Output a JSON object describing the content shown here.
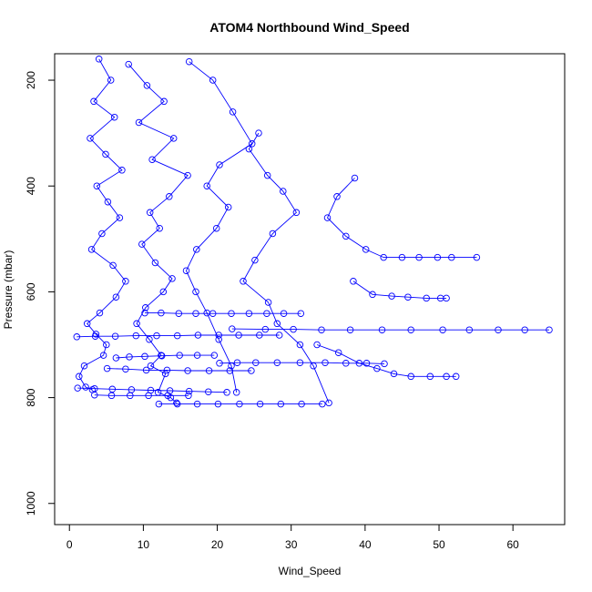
{
  "chart_data": {
    "type": "scatter",
    "title": "ATOM4 Northbound Wind_Speed",
    "xlabel": "Wind_Speed",
    "ylabel": "Pressure (mbar)",
    "xlim": [
      -2,
      67
    ],
    "ylim": [
      1040,
      150
    ],
    "y_reversed": true,
    "x_ticks": [
      0,
      10,
      20,
      30,
      40,
      50,
      60
    ],
    "y_ticks": [
      200,
      400,
      600,
      800,
      1000
    ],
    "x_tick_labels": [
      "0",
      "10",
      "20",
      "30",
      "40",
      "50",
      "60"
    ],
    "y_tick_labels": [
      "200",
      "400",
      "600",
      "800",
      "1000"
    ],
    "marker": "open-circle",
    "grid": false,
    "legend": "none",
    "series": [
      {
        "x": [
          4.0,
          5.6,
          3.3,
          6.1,
          2.8,
          4.9,
          7.1,
          3.7,
          5.2,
          6.8,
          4.4,
          3.0,
          5.9,
          7.6,
          6.3,
          4.1,
          2.4,
          3.6,
          5.0,
          4.6,
          2.0,
          1.3,
          2.2,
          3.1
        ],
        "y": [
          160,
          200,
          240,
          270,
          310,
          340,
          370,
          400,
          430,
          460,
          490,
          520,
          550,
          580,
          610,
          640,
          660,
          680,
          700,
          720,
          740,
          760,
          780,
          785
        ]
      },
      {
        "x": [
          8.0,
          10.5,
          12.8,
          9.4,
          14.1,
          11.2,
          16.0,
          13.5,
          10.9,
          12.2,
          9.8,
          11.6,
          13.9,
          12.7,
          10.3,
          9.1,
          10.8,
          12.4,
          11.0,
          13.0,
          12.0,
          13.7,
          14.5
        ],
        "y": [
          170,
          210,
          240,
          280,
          310,
          350,
          380,
          420,
          450,
          480,
          510,
          545,
          575,
          600,
          630,
          660,
          690,
          720,
          740,
          755,
          790,
          800,
          810
        ]
      },
      {
        "x": [
          16.2,
          19.4,
          22.1,
          24.7,
          20.3,
          18.6,
          21.5,
          19.9,
          17.2,
          15.8,
          17.1,
          18.6,
          20.2,
          21.9,
          22.6
        ],
        "y": [
          165,
          200,
          260,
          320,
          360,
          400,
          440,
          480,
          520,
          560,
          600,
          640,
          690,
          740,
          790
        ]
      },
      {
        "x": [
          25.6,
          24.3,
          26.8,
          28.9,
          30.7,
          27.5,
          25.1,
          23.5,
          26.9,
          28.1,
          31.2,
          33.0,
          35.1
        ],
        "y": [
          300,
          330,
          380,
          410,
          450,
          490,
          540,
          580,
          620,
          660,
          700,
          740,
          810
        ]
      },
      {
        "x": [
          38.6,
          36.2,
          34.9,
          37.4,
          40.1,
          42.5,
          45.0,
          47.3,
          49.8,
          51.7,
          55.1
        ],
        "y": [
          385,
          420,
          460,
          495,
          520,
          535,
          535,
          535,
          535,
          535,
          535
        ]
      },
      {
        "x": [
          38.4,
          41.0,
          43.6,
          45.8,
          48.3,
          50.2,
          51.0
        ],
        "y": [
          580,
          605,
          608,
          610,
          612,
          612,
          612
        ]
      },
      {
        "x": [
          22.0,
          26.5,
          30.3,
          34.1,
          38.0,
          42.3,
          46.2,
          50.5,
          54.1,
          58.0,
          61.6,
          64.9
        ],
        "y": [
          670,
          671,
          671,
          672,
          672,
          672,
          672,
          672,
          672,
          672,
          672,
          672
        ]
      },
      {
        "x": [
          33.5,
          36.4,
          39.2,
          41.6,
          43.9,
          46.2,
          48.8,
          51.0,
          52.3
        ],
        "y": [
          700,
          715,
          735,
          745,
          755,
          760,
          760,
          760,
          760
        ]
      },
      {
        "x": [
          1.0,
          3.5,
          6.2,
          9.0,
          11.8,
          14.6,
          17.4,
          20.2,
          22.9,
          25.7,
          28.4
        ],
        "y": [
          685,
          684,
          684,
          683,
          683,
          683,
          682,
          682,
          682,
          682,
          682
        ]
      },
      {
        "x": [
          1.1,
          3.4,
          5.8,
          8.4,
          11.0,
          13.6,
          16.2,
          18.8,
          21.3
        ],
        "y": [
          782,
          783,
          784,
          785,
          786,
          787,
          788,
          789,
          790
        ]
      },
      {
        "x": [
          10.2,
          12.4,
          14.8,
          17.1,
          19.4,
          21.9,
          24.3,
          26.7,
          29.0,
          31.3
        ],
        "y": [
          640,
          640,
          641,
          641,
          641,
          641,
          641,
          641,
          641,
          641
        ]
      },
      {
        "x": [
          12.1,
          14.6,
          17.3,
          20.1,
          23.0,
          25.8,
          28.6,
          31.4,
          34.2
        ],
        "y": [
          812,
          812,
          812,
          812,
          812,
          812,
          812,
          812,
          812
        ]
      },
      {
        "x": [
          5.1,
          7.6,
          10.4,
          13.2,
          16.0,
          18.9,
          21.7,
          24.6
        ],
        "y": [
          745,
          746,
          748,
          748,
          749,
          749,
          749,
          749
        ]
      },
      {
        "x": [
          6.3,
          8.1,
          10.2,
          12.5,
          14.9,
          17.3,
          19.6
        ],
        "y": [
          725,
          723,
          722,
          721,
          720,
          720,
          720
        ]
      },
      {
        "x": [
          3.4,
          5.7,
          8.2,
          10.7,
          13.3,
          16.1
        ],
        "y": [
          795,
          796,
          796,
          796,
          796,
          796
        ]
      },
      {
        "x": [
          20.3,
          22.7,
          25.2,
          28.1,
          31.2,
          34.6,
          37.4,
          40.2,
          42.6
        ],
        "y": [
          735,
          734,
          734,
          734,
          734,
          734,
          735,
          735,
          736
        ]
      }
    ]
  }
}
